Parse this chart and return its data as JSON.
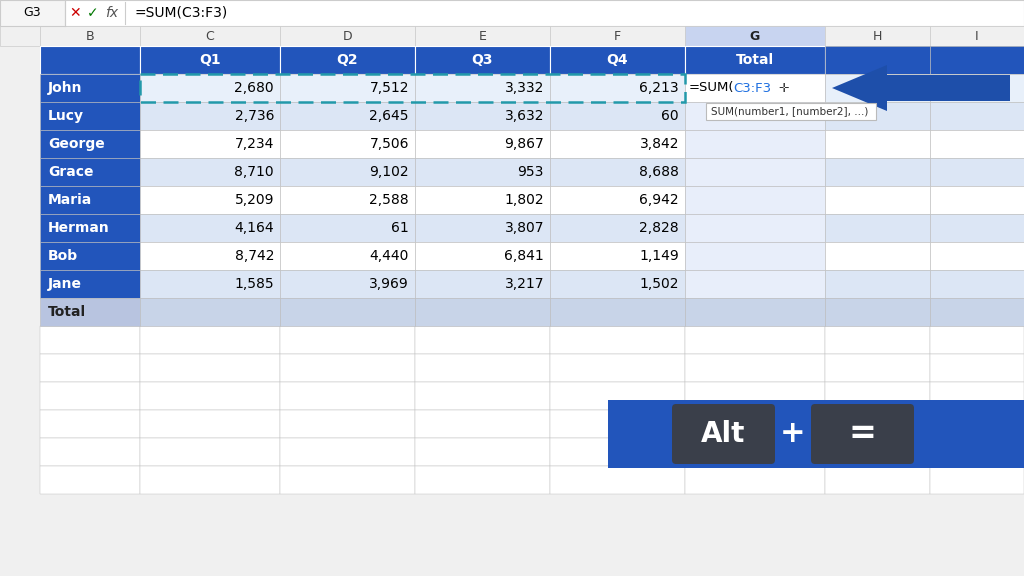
{
  "formula_bar_text": "=SUM(C3:F3)",
  "rows": [
    {
      "name": "John",
      "q1": "2,680",
      "q2": "7,512",
      "q3": "3,332",
      "q4": "6,213",
      "is_john": true
    },
    {
      "name": "Lucy",
      "q1": "2,736",
      "q2": "2,645",
      "q3": "3,632",
      "q4": "60",
      "is_john": false
    },
    {
      "name": "George",
      "q1": "7,234",
      "q2": "7,506",
      "q3": "9,867",
      "q4": "3,842",
      "is_john": false
    },
    {
      "name": "Grace",
      "q1": "8,710",
      "q2": "9,102",
      "q3": "953",
      "q4": "8,688",
      "is_john": false
    },
    {
      "name": "Maria",
      "q1": "5,209",
      "q2": "2,588",
      "q3": "1,802",
      "q4": "6,942",
      "is_john": false
    },
    {
      "name": "Herman",
      "q1": "4,164",
      "q2": "61",
      "q3": "3,807",
      "q4": "2,828",
      "is_john": false
    },
    {
      "name": "Bob",
      "q1": "8,742",
      "q2": "4,440",
      "q3": "6,841",
      "q4": "1,149",
      "is_john": false
    },
    {
      "name": "Jane",
      "q1": "1,585",
      "q2": "3,969",
      "q3": "3,217",
      "q4": "1,502",
      "is_john": false
    },
    {
      "name": "Total",
      "q1": "",
      "q2": "",
      "q3": "",
      "q4": "",
      "is_john": false
    }
  ],
  "header_bg": "#2255BB",
  "header_text": "#FFFFFF",
  "name_bg_blue": "#2255BB",
  "name_text_white": "#FFFFFF",
  "total_row_name_bg": "#B8C4E0",
  "total_row_data_bg": "#C8D4E8",
  "data_bg_white": "#FFFFFF",
  "data_bg_light": "#DCE6F5",
  "john_data_bg": "#E8F0FA",
  "john_total_bg": "#FFFFFF",
  "g_col_light": "#E8EEFA",
  "selected_dashed_color": "#2299AA",
  "tooltip_bg": "#FFFFFF",
  "tooltip_border": "#BBBBBB",
  "shortcut_bg": "#2255BB",
  "key_bg": "#3A3F4A",
  "key_text": "#FFFFFF",
  "plus_color": "#FFFFFF",
  "background": "#F0F0F0",
  "grid_color": "#BBBBBB",
  "formula_bar_bg": "#FFFFFF",
  "col_header_bg": "#F0F0F0",
  "col_header_selected": "#C8D4F0",
  "arrow_color": "#1E4FAA"
}
